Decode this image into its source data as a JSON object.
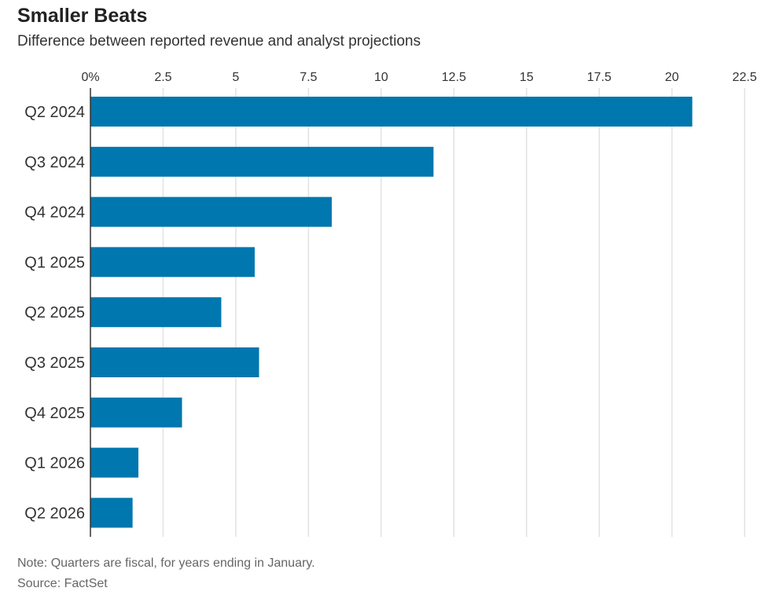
{
  "chart_data": {
    "type": "bar",
    "orientation": "horizontal",
    "title": "Smaller Beats",
    "subtitle": "Difference between reported revenue and analyst projections",
    "categories": [
      "Q2 2024",
      "Q3 2024",
      "Q4 2024",
      "Q1 2025",
      "Q2 2025",
      "Q3 2025",
      "Q4 2025",
      "Q1 2026",
      "Q2 2026"
    ],
    "values": [
      20.7,
      11.8,
      8.3,
      5.65,
      4.5,
      5.8,
      3.15,
      1.65,
      1.45
    ],
    "xlim": [
      0,
      22.5
    ],
    "x_ticks": [
      "0%",
      "2.5",
      "5",
      "7.5",
      "10",
      "12.5",
      "15",
      "17.5",
      "20",
      "22.5"
    ],
    "x_tick_values": [
      0,
      2.5,
      5,
      7.5,
      10,
      12.5,
      15,
      17.5,
      20,
      22.5
    ],
    "axis_position": "top",
    "grid": true,
    "bar_color": "#0077ae",
    "note": "Note: Quarters are fiscal, for years ending in January.",
    "source": "Source: FactSet"
  }
}
